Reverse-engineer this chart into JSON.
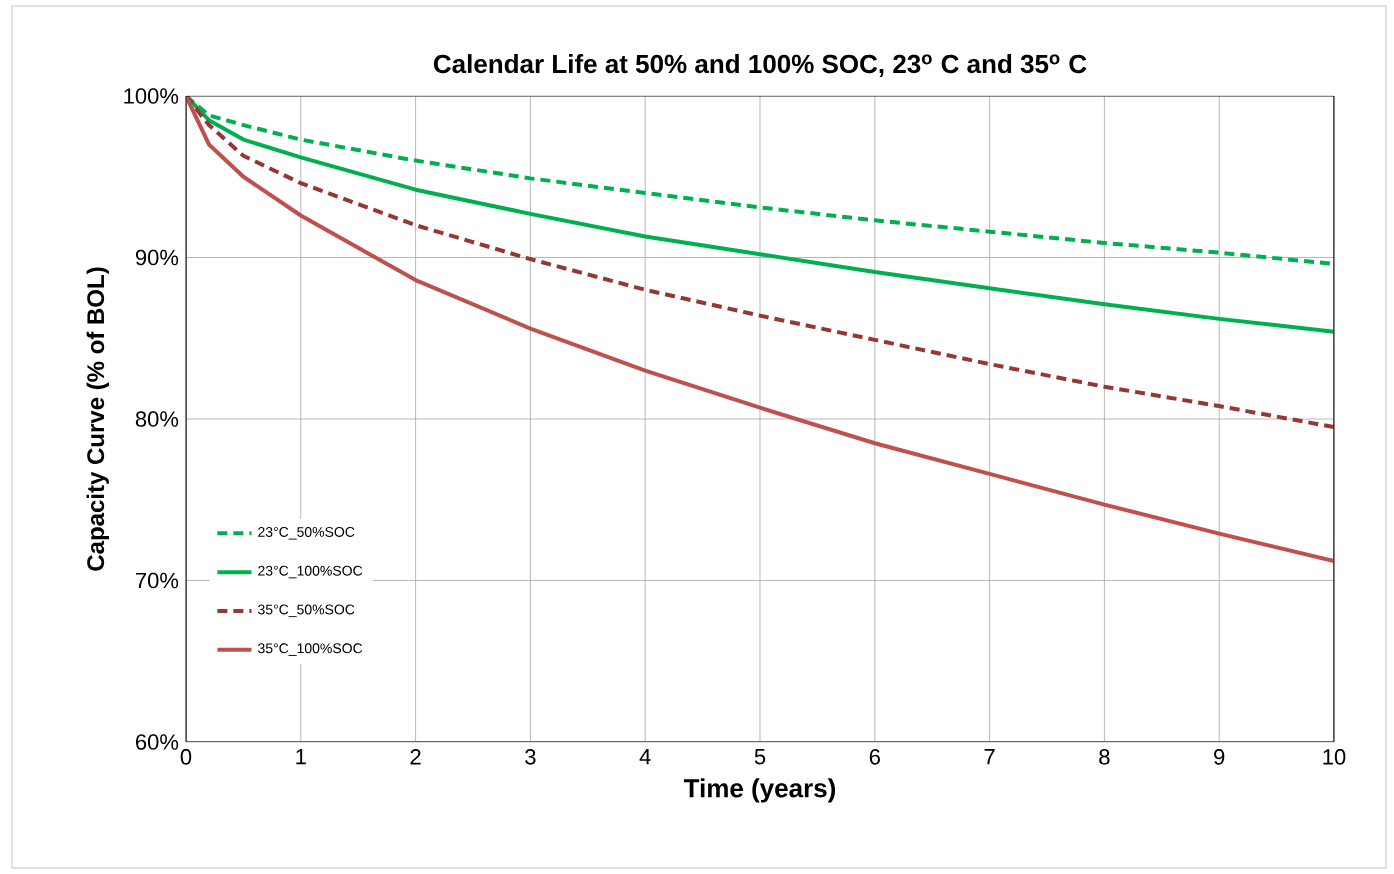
{
  "chart_data": {
    "type": "line",
    "title": "Calendar Life  at 50% and 100% SOC,  23$^{o}$ C and 35$^{o}$ C",
    "xlabel": "Time (years)",
    "ylabel": "Capacity Curve (% of BOL)",
    "x": [
      0,
      0.2,
      0.5,
      1,
      2,
      3,
      4,
      5,
      6,
      7,
      8,
      9,
      10
    ],
    "series": [
      {
        "name": "23°C_50%SOC",
        "color": "#00b050",
        "line_style": "dashed",
        "values": [
          100,
          98.8,
          98.2,
          97.3,
          96,
          94.9,
          94,
          93.1,
          92.3,
          91.6,
          90.9,
          90.3,
          89.6
        ]
      },
      {
        "name": "23°C_100%SOC",
        "color": "#00b050",
        "line_style": "solid",
        "values": [
          100,
          98.5,
          97.3,
          96.2,
          94.2,
          92.7,
          91.3,
          90.2,
          89.1,
          88.1,
          87.1,
          86.2,
          85.4
        ]
      },
      {
        "name": "35°C_50%SOC",
        "color": "#953735",
        "line_style": "dashed",
        "values": [
          100,
          98.2,
          96.3,
          94.6,
          92,
          89.9,
          88,
          86.4,
          84.9,
          83.4,
          82,
          80.8,
          79.5
        ]
      },
      {
        "name": "35°C_100%SOC",
        "color": "#c0504d",
        "line_style": "solid",
        "values": [
          100,
          97,
          95,
          92.6,
          88.6,
          85.6,
          83,
          80.7,
          78.5,
          76.6,
          74.7,
          72.9,
          71.2
        ]
      }
    ],
    "xlim": [
      0,
      10
    ],
    "xticks": [
      0,
      1,
      2,
      3,
      4,
      5,
      6,
      7,
      8,
      9,
      10
    ],
    "ylim": [
      60,
      100
    ],
    "yticks": [
      {
        "value": 60,
        "label": "60%"
      },
      {
        "value": 70,
        "label": "70%"
      },
      {
        "value": 80,
        "label": "80%"
      },
      {
        "value": 90,
        "label": "90%"
      },
      {
        "value": 100,
        "label": "100%"
      }
    ],
    "grid": true,
    "legend": "left"
  }
}
